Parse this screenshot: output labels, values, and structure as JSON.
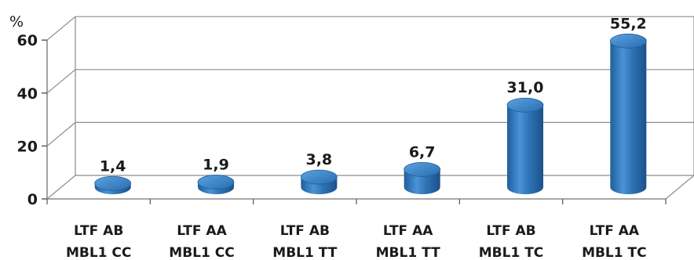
{
  "chart_data": {
    "type": "bar",
    "style": "3d-cylinder",
    "y_unit": "%",
    "ylim": [
      0,
      60
    ],
    "yticks": [
      0,
      20,
      40,
      60
    ],
    "grid": true,
    "legend": "none",
    "bar_color": "#2f74b7",
    "categories": [
      [
        "LTF AB",
        "MBL1 CC"
      ],
      [
        "LTF AA",
        "MBL1 CC"
      ],
      [
        "LTF AB",
        "MBL1 TT"
      ],
      [
        "LTF AA",
        "MBL1 TT"
      ],
      [
        "LTF AB",
        "MBL1 TC"
      ],
      [
        "LTF AA",
        "MBL1 TC"
      ]
    ],
    "values": [
      1.4,
      1.9,
      3.8,
      6.7,
      31.0,
      55.2
    ],
    "data_labels": [
      "1,4",
      "1,9",
      "3,8",
      "6,7",
      "31,0",
      "55,2"
    ]
  }
}
